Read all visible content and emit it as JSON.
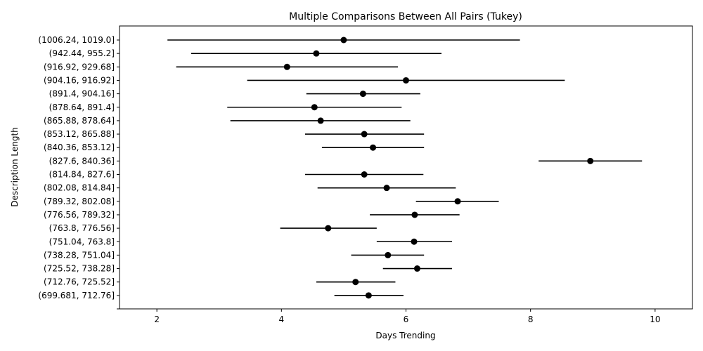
{
  "chart_data": {
    "type": "errorbar",
    "title": "Multiple Comparisons Between All Pairs (Tukey)",
    "xlabel": "Days Trending",
    "ylabel": "Description Length",
    "xlim": [
      1.4,
      10.6
    ],
    "xticks": [
      2,
      4,
      6,
      8,
      10
    ],
    "grid": false,
    "marker_color": "#000000",
    "line_color": "#000000",
    "groups": [
      {
        "label": "(1006.24, 1019.0]",
        "mean": 5.0,
        "lower": 2.17,
        "upper": 7.83
      },
      {
        "label": "(942.44, 955.2]",
        "mean": 4.56,
        "lower": 2.55,
        "upper": 6.57
      },
      {
        "label": "(916.92, 929.68]",
        "mean": 4.09,
        "lower": 2.31,
        "upper": 5.87
      },
      {
        "label": "(904.16, 916.92]",
        "mean": 6.0,
        "lower": 3.45,
        "upper": 8.55
      },
      {
        "label": "(891.4, 904.16]",
        "mean": 5.31,
        "lower": 4.4,
        "upper": 6.23
      },
      {
        "label": "(878.64, 891.4]",
        "mean": 4.53,
        "lower": 3.13,
        "upper": 5.93
      },
      {
        "label": "(865.88, 878.64]",
        "mean": 4.63,
        "lower": 3.18,
        "upper": 6.07
      },
      {
        "label": "(853.12, 865.88]",
        "mean": 5.33,
        "lower": 4.38,
        "upper": 6.29
      },
      {
        "label": "(840.36, 853.12]",
        "mean": 5.47,
        "lower": 4.65,
        "upper": 6.29
      },
      {
        "label": "(827.6, 840.36]",
        "mean": 8.96,
        "lower": 8.13,
        "upper": 9.79
      },
      {
        "label": "(814.84, 827.6]",
        "mean": 5.33,
        "lower": 4.38,
        "upper": 6.28
      },
      {
        "label": "(802.08, 814.84]",
        "mean": 5.69,
        "lower": 4.58,
        "upper": 6.8
      },
      {
        "label": "(789.32, 802.08]",
        "mean": 6.83,
        "lower": 6.16,
        "upper": 7.49
      },
      {
        "label": "(776.56, 789.32]",
        "mean": 6.14,
        "lower": 5.42,
        "upper": 6.86
      },
      {
        "label": "(763.8, 776.56]",
        "mean": 4.75,
        "lower": 3.98,
        "upper": 5.53
      },
      {
        "label": "(751.04, 763.8]",
        "mean": 6.13,
        "lower": 5.53,
        "upper": 6.74
      },
      {
        "label": "(738.28, 751.04]",
        "mean": 5.71,
        "lower": 5.12,
        "upper": 6.29
      },
      {
        "label": "(725.52, 738.28]",
        "mean": 6.18,
        "lower": 5.63,
        "upper": 6.74
      },
      {
        "label": "(712.76, 725.52]",
        "mean": 5.19,
        "lower": 4.56,
        "upper": 5.83
      },
      {
        "label": "(699.681, 712.76]",
        "mean": 5.4,
        "lower": 4.85,
        "upper": 5.96
      }
    ]
  }
}
